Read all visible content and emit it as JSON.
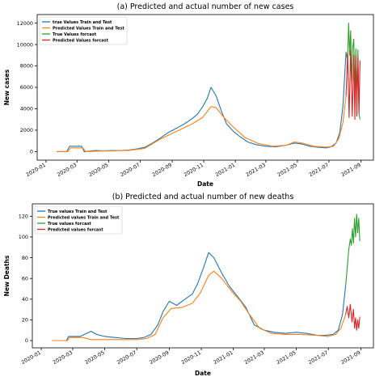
{
  "colors": {
    "train_true": "#1f77b4",
    "train_pred": "#ff7f0e",
    "forecast_true": "#2ca02c",
    "forecast_pred": "#d62728"
  },
  "chart_data": [
    {
      "type": "line",
      "title": "(a) Predicted and actual number of new cases",
      "xlabel": "Date",
      "ylabel": "New cases",
      "xlim": [
        "2019-12-15",
        "2021-09-25"
      ],
      "ylim": [
        -800,
        12800
      ],
      "x_ticks": [
        "2020-01",
        "2020-03",
        "2020-05",
        "2020-07",
        "2020-09",
        "2020-11",
        "2021-01",
        "2021-03",
        "2021-05",
        "2021-07",
        "2021-09"
      ],
      "y_ticks": [
        0,
        2000,
        4000,
        6000,
        8000,
        10000,
        12000
      ],
      "legend": [
        "true Values Train and Test",
        "Predicted Values Train and Test",
        "True Values forcast",
        "Predicted Values forcast"
      ],
      "legend_position": "top-left",
      "series": [
        {
          "name": "true Values Train and Test",
          "x": [
            "2020-01-22",
            "2020-02-10",
            "2020-02-16",
            "2020-03-10",
            "2020-03-15",
            "2020-04-05",
            "2020-04-20",
            "2020-05-10",
            "2020-05-25",
            "2020-06-10",
            "2020-06-25",
            "2020-07-10",
            "2020-07-25",
            "2020-08-10",
            "2020-08-25",
            "2020-09-10",
            "2020-09-25",
            "2020-10-10",
            "2020-10-20",
            "2020-10-30",
            "2020-11-08",
            "2020-11-15",
            "2020-11-25",
            "2020-12-05",
            "2020-12-15",
            "2020-12-28",
            "2021-01-10",
            "2021-01-25",
            "2021-02-10",
            "2021-03-01",
            "2021-03-20",
            "2021-04-10",
            "2021-04-25",
            "2021-05-10",
            "2021-05-25",
            "2021-06-10",
            "2021-06-25",
            "2021-07-05",
            "2021-07-15",
            "2021-07-22",
            "2021-07-28",
            "2021-08-03"
          ],
          "values": [
            0,
            0,
            500,
            500,
            0,
            100,
            80,
            100,
            100,
            150,
            250,
            400,
            800,
            1300,
            1800,
            2200,
            2600,
            3100,
            3500,
            4200,
            5000,
            6000,
            5200,
            3800,
            2600,
            1900,
            1400,
            900,
            650,
            500,
            450,
            600,
            800,
            700,
            500,
            400,
            350,
            450,
            800,
            1800,
            4200,
            9300
          ]
        },
        {
          "name": "Predicted Values Train and Test",
          "x": [
            "2020-01-22",
            "2020-02-12",
            "2020-02-18",
            "2020-03-12",
            "2020-03-18",
            "2020-04-10",
            "2020-05-10",
            "2020-06-10",
            "2020-07-10",
            "2020-08-10",
            "2020-09-10",
            "2020-10-10",
            "2020-10-30",
            "2020-11-15",
            "2020-11-25",
            "2020-12-10",
            "2020-12-28",
            "2021-01-20",
            "2021-02-15",
            "2021-03-15",
            "2021-04-10",
            "2021-04-25",
            "2021-05-10",
            "2021-06-01",
            "2021-06-25",
            "2021-07-10",
            "2021-07-20",
            "2021-07-28",
            "2021-08-03"
          ],
          "values": [
            0,
            0,
            350,
            350,
            0,
            50,
            80,
            120,
            300,
            1200,
            1900,
            2600,
            3200,
            4200,
            4100,
            3200,
            2300,
            1300,
            750,
            500,
            600,
            900,
            800,
            500,
            420,
            500,
            1200,
            2700,
            5200
          ]
        },
        {
          "name": "True Values forcast",
          "x": [
            "2021-08-03",
            "2021-08-06",
            "2021-08-08",
            "2021-08-10",
            "2021-08-12",
            "2021-08-14",
            "2021-08-16",
            "2021-08-18",
            "2021-08-20",
            "2021-08-22",
            "2021-08-24",
            "2021-08-26",
            "2021-08-28",
            "2021-08-30"
          ],
          "values": [
            9300,
            8500,
            12000,
            9000,
            11300,
            6500,
            9700,
            10500,
            5200,
            9600,
            5000,
            9500,
            3500,
            3000
          ]
        },
        {
          "name": "Predicted Values forcast",
          "x": [
            "2021-08-03",
            "2021-08-06",
            "2021-08-09",
            "2021-08-12",
            "2021-08-15",
            "2021-08-18",
            "2021-08-20",
            "2021-08-22",
            "2021-08-24",
            "2021-08-26",
            "2021-08-28",
            "2021-08-30"
          ],
          "values": [
            5200,
            9200,
            3200,
            9500,
            3300,
            9000,
            3000,
            9000,
            3300,
            8800,
            3500,
            8500
          ]
        }
      ]
    },
    {
      "type": "line",
      "title": "(b) Predicted and actual number of new deaths",
      "xlabel": "Date",
      "ylabel": "New Deaths",
      "xlim": [
        "2019-12-15",
        "2021-09-25"
      ],
      "ylim": [
        -7,
        132
      ],
      "x_ticks": [
        "2020-01",
        "2020-03",
        "2020-05",
        "2020-07",
        "2020-09",
        "2020-11",
        "2021-01",
        "2021-03",
        "2021-05",
        "2021-07",
        "2021-09"
      ],
      "y_ticks": [
        0,
        20,
        40,
        60,
        80,
        100,
        120
      ],
      "legend": [
        "True values Train and Test",
        "Predicted values Train and Test",
        "True values forcast",
        "Predicted values forcast"
      ],
      "legend_position": "top-left",
      "series": [
        {
          "name": "True values Train and Test",
          "x": [
            "2020-01-22",
            "2020-02-18",
            "2020-02-22",
            "2020-03-15",
            "2020-04-05",
            "2020-04-15",
            "2020-05-01",
            "2020-05-20",
            "2020-06-10",
            "2020-06-30",
            "2020-07-15",
            "2020-07-28",
            "2020-08-10",
            "2020-08-20",
            "2020-09-01",
            "2020-09-15",
            "2020-10-01",
            "2020-10-15",
            "2020-10-25",
            "2020-11-05",
            "2020-11-15",
            "2020-11-25",
            "2020-12-10",
            "2020-12-25",
            "2021-01-10",
            "2021-01-25",
            "2021-02-10",
            "2021-03-01",
            "2021-03-20",
            "2021-04-10",
            "2021-05-01",
            "2021-05-20",
            "2021-06-10",
            "2021-06-25",
            "2021-07-10",
            "2021-07-20",
            "2021-07-28",
            "2021-08-03"
          ],
          "values": [
            0,
            0,
            4,
            4,
            9,
            6,
            4,
            3,
            2,
            2,
            3,
            6,
            15,
            28,
            38,
            34,
            40,
            45,
            55,
            70,
            85,
            80,
            65,
            52,
            42,
            32,
            15,
            10,
            8,
            7,
            8,
            7,
            5,
            5,
            6,
            10,
            25,
            53
          ]
        },
        {
          "name": "Predicted values Train and Test",
          "x": [
            "2020-01-22",
            "2020-02-20",
            "2020-02-24",
            "2020-03-20",
            "2020-04-05",
            "2020-05-01",
            "2020-06-01",
            "2020-07-01",
            "2020-07-20",
            "2020-08-05",
            "2020-08-20",
            "2020-09-05",
            "2020-09-25",
            "2020-10-15",
            "2020-10-30",
            "2020-11-15",
            "2020-11-25",
            "2020-12-10",
            "2020-12-28",
            "2021-01-15",
            "2021-02-01",
            "2021-02-20",
            "2021-03-15",
            "2021-04-10",
            "2021-05-10",
            "2021-06-10",
            "2021-07-01",
            "2021-07-15",
            "2021-07-25",
            "2021-08-03"
          ],
          "values": [
            0,
            0,
            3,
            3,
            1,
            1,
            1,
            1,
            2,
            6,
            22,
            31,
            32,
            36,
            46,
            63,
            67,
            60,
            48,
            38,
            25,
            12,
            7,
            6,
            6,
            5,
            4,
            6,
            12,
            25
          ]
        },
        {
          "name": "True values forcast",
          "x": [
            "2021-08-03",
            "2021-08-06",
            "2021-08-09",
            "2021-08-12",
            "2021-08-14",
            "2021-08-16",
            "2021-08-18",
            "2021-08-20",
            "2021-08-22",
            "2021-08-24",
            "2021-08-26",
            "2021-08-28",
            "2021-08-30"
          ],
          "values": [
            53,
            70,
            88,
            98,
            92,
            108,
            94,
            118,
            100,
            122,
            104,
            118,
            96
          ]
        },
        {
          "name": "Predicted values forcast",
          "x": [
            "2021-08-03",
            "2021-08-06",
            "2021-08-09",
            "2021-08-12",
            "2021-08-15",
            "2021-08-18",
            "2021-08-20",
            "2021-08-22",
            "2021-08-24",
            "2021-08-26",
            "2021-08-28",
            "2021-08-30"
          ],
          "values": [
            25,
            33,
            22,
            35,
            18,
            30,
            12,
            22,
            10,
            20,
            12,
            23
          ]
        }
      ]
    }
  ]
}
